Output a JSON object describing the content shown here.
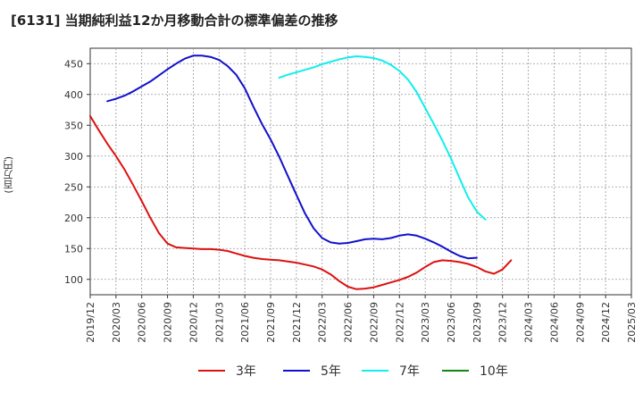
{
  "chart_data": {
    "type": "line",
    "title": "[6131]  当期純利益12か月移動合計の標準偏差の推移",
    "ylabel": "(百万円)",
    "xlabel": "",
    "ylim": [
      75,
      475
    ],
    "yticks": [
      100,
      150,
      200,
      250,
      300,
      350,
      400,
      450
    ],
    "xtick_labels": [
      "2019/12",
      "2020/03",
      "2020/06",
      "2020/09",
      "2020/12",
      "2021/03",
      "2021/06",
      "2021/09",
      "2021/12",
      "2022/03",
      "2022/06",
      "2022/09",
      "2022/12",
      "2023/03",
      "2023/06",
      "2023/09",
      "2023/12",
      "2024/03",
      "2024/06",
      "2024/09",
      "2024/12",
      "2025/03"
    ],
    "grid": true,
    "legend_position": "bottom",
    "series": [
      {
        "name": "3年",
        "color": "#dd1111",
        "values": [
          365,
          342,
          320,
          300,
          278,
          253,
          227,
          200,
          175,
          158,
          152,
          151,
          150,
          149,
          149,
          148,
          146,
          142,
          138,
          135,
          133,
          132,
          131,
          129,
          127,
          124,
          121,
          116,
          108,
          97,
          88,
          84,
          85,
          87,
          91,
          95,
          99,
          104,
          111,
          120,
          128,
          131,
          130,
          128,
          125,
          120,
          113,
          109,
          116,
          131
        ]
      },
      {
        "name": "5年",
        "color": "#1111cc",
        "values": [
          null,
          null,
          389,
          393,
          398,
          405,
          413,
          421,
          431,
          441,
          450,
          458,
          463,
          463,
          461,
          456,
          446,
          432,
          410,
          380,
          352,
          327,
          299,
          268,
          237,
          207,
          183,
          167,
          160,
          158,
          159,
          162,
          165,
          166,
          165,
          167,
          171,
          173,
          171,
          166,
          160,
          153,
          145,
          138,
          134,
          135
        ]
      },
      {
        "name": "7年",
        "color": "#11eeee",
        "values": [
          null,
          null,
          null,
          null,
          null,
          null,
          null,
          null,
          null,
          null,
          null,
          null,
          null,
          null,
          null,
          null,
          null,
          null,
          null,
          null,
          null,
          null,
          427,
          432,
          436,
          440,
          444,
          449,
          453,
          457,
          460,
          462,
          461,
          459,
          455,
          448,
          438,
          424,
          404,
          378,
          352,
          325,
          296,
          264,
          233,
          210,
          197
        ]
      },
      {
        "name": "10年",
        "color": "#118811",
        "values": []
      }
    ]
  }
}
